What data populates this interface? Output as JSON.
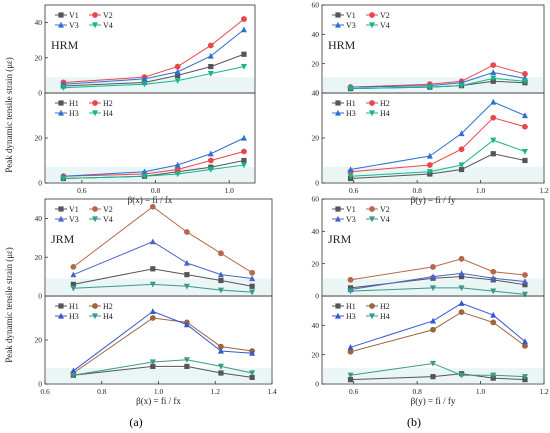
{
  "colors": {
    "V1": "#555555",
    "V2": "#e8474c",
    "V3": "#2f6fd0",
    "V4": "#19b58a",
    "H1": "#555555",
    "H2": "#e8474c",
    "H3": "#2f6fd0",
    "H4": "#19b58a",
    "JRM_V1": "#555555",
    "JRM_V2": "#b4694a",
    "JRM_V3": "#4d63c9",
    "JRM_V4": "#3a9a86",
    "JRM_H1": "#555555",
    "JRM_H2": "#9d6440",
    "JRM_H3": "#3358d4",
    "JRM_H4": "#3a9a86",
    "band": "#d9ecef"
  },
  "ylabel": "Peak dynamic tensile strain (με)",
  "subplot_labels": [
    "(a)",
    "(b)"
  ],
  "chart_data": [
    {
      "id": "hrm_x",
      "type": "line",
      "tag": "HRM",
      "xlabel": "β(x) = fi / fx",
      "xlim": [
        0.5,
        1.07
      ],
      "xticks": [
        "0.6",
        "0.8",
        "1.0"
      ],
      "top": {
        "ylim": [
          0,
          50
        ],
        "yticks": [
          "0",
          "20",
          "40"
        ],
        "x": [
          0.55,
          0.77,
          0.86,
          0.95,
          1.04
        ],
        "series": [
          {
            "name": "V1",
            "values": [
              4,
              6,
              10,
              15,
              22
            ]
          },
          {
            "name": "V2",
            "values": [
              6,
              9,
              15,
              27,
              42
            ]
          },
          {
            "name": "V3",
            "values": [
              5,
              8,
              12,
              21,
              36
            ]
          },
          {
            "name": "V4",
            "values": [
              3,
              5,
              7,
              11,
              15
            ]
          }
        ]
      },
      "bottom": {
        "ylim": [
          0,
          40
        ],
        "yticks": [
          "0",
          "20"
        ],
        "x": [
          0.55,
          0.77,
          0.86,
          0.95,
          1.04
        ],
        "series": [
          {
            "name": "H1",
            "values": [
              2,
              3,
              5,
              7,
              10
            ]
          },
          {
            "name": "H2",
            "values": [
              3,
              4,
              6,
              10,
              14
            ]
          },
          {
            "name": "H3",
            "values": [
              3,
              5,
              8,
              13,
              20
            ]
          },
          {
            "name": "H4",
            "values": [
              2,
              3,
              4,
              6,
              8
            ]
          }
        ]
      }
    },
    {
      "id": "hrm_y",
      "type": "line",
      "tag": "HRM",
      "xlabel": "β(y) = fi / fy",
      "xlim": [
        0.5,
        1.2
      ],
      "xticks": [
        "0.6",
        "0.8",
        "1.0",
        "1.2"
      ],
      "top": {
        "ylim": [
          0,
          60
        ],
        "yticks": [
          "0",
          "20",
          "40",
          "60"
        ],
        "x": [
          0.59,
          0.84,
          0.94,
          1.04,
          1.14
        ],
        "series": [
          {
            "name": "V1",
            "values": [
              3,
              4,
              5,
              8,
              7
            ]
          },
          {
            "name": "V2",
            "values": [
              4,
              6,
              8,
              19,
              13
            ]
          },
          {
            "name": "V3",
            "values": [
              4,
              5,
              7,
              14,
              10
            ]
          },
          {
            "name": "V4",
            "values": [
              3,
              4,
              5,
              10,
              8
            ]
          }
        ]
      },
      "bottom": {
        "ylim": [
          0,
          40
        ],
        "yticks": [
          "0",
          "20",
          "40"
        ],
        "x": [
          0.59,
          0.84,
          0.94,
          1.04,
          1.14
        ],
        "series": [
          {
            "name": "H1",
            "values": [
              2,
              4,
              6,
              13,
              10
            ]
          },
          {
            "name": "H2",
            "values": [
              5,
              8,
              15,
              29,
              25
            ]
          },
          {
            "name": "H3",
            "values": [
              6,
              12,
              22,
              36,
              30
            ]
          },
          {
            "name": "H4",
            "values": [
              3,
              5,
              8,
              19,
              14
            ]
          }
        ]
      }
    },
    {
      "id": "jrm_x",
      "type": "line",
      "tag": "JRM",
      "xlabel": "β(x) = fi / fx",
      "xlim": [
        0.6,
        1.4
      ],
      "xticks": [
        "0.6",
        "0.8",
        "1.0",
        "1.2",
        "1.4"
      ],
      "top": {
        "ylim": [
          0,
          50
        ],
        "yticks": [
          "0",
          "20",
          "40"
        ],
        "x": [
          0.7,
          0.98,
          1.1,
          1.22,
          1.33
        ],
        "series": [
          {
            "name": "V1",
            "values": [
              6,
              14,
              11,
              8,
              5
            ]
          },
          {
            "name": "V2",
            "values": [
              15,
              46,
              33,
              22,
              12
            ]
          },
          {
            "name": "V3",
            "values": [
              11,
              28,
              17,
              11,
              9
            ]
          },
          {
            "name": "V4",
            "values": [
              4,
              6,
              5,
              3,
              2
            ]
          }
        ]
      },
      "bottom": {
        "ylim": [
          0,
          40
        ],
        "yticks": [
          "0",
          "20"
        ],
        "x": [
          0.7,
          0.98,
          1.1,
          1.22,
          1.33
        ],
        "series": [
          {
            "name": "H1",
            "values": [
              4,
              8,
              8,
              5,
              3
            ]
          },
          {
            "name": "H2",
            "values": [
              5,
              30,
              28,
              17,
              15
            ]
          },
          {
            "name": "H3",
            "values": [
              6,
              33,
              27,
              15,
              14
            ]
          },
          {
            "name": "H4",
            "values": [
              4,
              10,
              11,
              8,
              5
            ]
          }
        ]
      }
    },
    {
      "id": "jrm_y",
      "type": "line",
      "tag": "JRM",
      "xlabel": "β(y) = fi / fy",
      "xlim": [
        0.5,
        1.2
      ],
      "xticks": [
        "0.6",
        "0.8",
        "1.0",
        "1.2"
      ],
      "top": {
        "ylim": [
          0,
          60
        ],
        "yticks": [
          "0",
          "20",
          "40",
          "60"
        ],
        "x": [
          0.59,
          0.85,
          0.94,
          1.04,
          1.14
        ],
        "series": [
          {
            "name": "V1",
            "values": [
              5,
              11,
              12,
              10,
              7
            ]
          },
          {
            "name": "V2",
            "values": [
              10,
              18,
              23,
              15,
              13
            ]
          },
          {
            "name": "V3",
            "values": [
              4,
              12,
              14,
              11,
              9
            ]
          },
          {
            "name": "V4",
            "values": [
              3,
              5,
              5,
              3,
              1
            ]
          }
        ]
      },
      "bottom": {
        "ylim": [
          0,
          60
        ],
        "yticks": [
          "0",
          "20",
          "40"
        ],
        "x": [
          0.59,
          0.85,
          0.94,
          1.04,
          1.14
        ],
        "series": [
          {
            "name": "H1",
            "values": [
              3,
              5,
              7,
              4,
              3
            ]
          },
          {
            "name": "H2",
            "values": [
              22,
              37,
              49,
              42,
              26
            ]
          },
          {
            "name": "H3",
            "values": [
              25,
              43,
              55,
              47,
              29
            ]
          },
          {
            "name": "H4",
            "values": [
              6,
              14,
              6,
              6,
              5
            ]
          }
        ]
      }
    }
  ]
}
